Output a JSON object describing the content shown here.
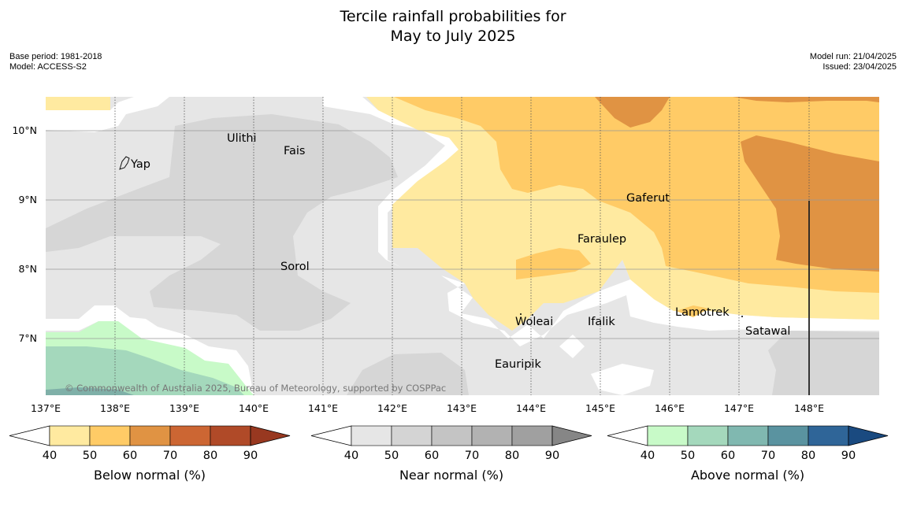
{
  "title": {
    "line1": "Tercile rainfall probabilities for",
    "line2": "May to July 2025"
  },
  "meta_left": {
    "base_period": "Base period: 1981-2018",
    "model": "Model: ACCESS-S2"
  },
  "meta_right": {
    "model_run": "Model run: 21/04/2025",
    "issued": "Issued: 23/04/2025"
  },
  "copyright": "© Commonwealth of Australia 2025, Bureau of Meteorology, supported by COSPPac",
  "axes": {
    "lat_labels": [
      "10°N",
      "9°N",
      "8°N",
      "7°N"
    ],
    "lon_labels": [
      "137°E",
      "138°E",
      "139°E",
      "140°E",
      "141°E",
      "142°E",
      "143°E",
      "144°E",
      "145°E",
      "146°E",
      "147°E",
      "148°E"
    ]
  },
  "places": [
    {
      "name": "Yap"
    },
    {
      "name": "Ulithi"
    },
    {
      "name": "Fais"
    },
    {
      "name": "Gaferut"
    },
    {
      "name": "Faraulep"
    },
    {
      "name": "Sorol"
    },
    {
      "name": "Lamotrek"
    },
    {
      "name": "Woleai"
    },
    {
      "name": "Ifalik"
    },
    {
      "name": "Satawal"
    },
    {
      "name": "Eauripik"
    }
  ],
  "colorbars": [
    {
      "label": "Below normal (%)",
      "ticks": [
        "40",
        "50",
        "60",
        "70",
        "80",
        "90"
      ],
      "colors": [
        "#ffeaa0",
        "#ffcb66",
        "#e09343",
        "#cc6633",
        "#b04a28",
        "#983820"
      ]
    },
    {
      "label": "Near normal (%)",
      "ticks": [
        "40",
        "50",
        "60",
        "70",
        "80",
        "90"
      ],
      "colors": [
        "#e6e6e6",
        "#d4d4d4",
        "#c4c4c4",
        "#b2b2b2",
        "#a0a0a0",
        "#868686"
      ]
    },
    {
      "label": "Above normal (%)",
      "ticks": [
        "40",
        "50",
        "60",
        "70",
        "80",
        "90"
      ],
      "colors": [
        "#c8fac8",
        "#a4d8bc",
        "#80b8b0",
        "#5a93a0",
        "#2f6598",
        "#1a4a80"
      ]
    }
  ],
  "colors": {
    "grey40": "#e6e6e6",
    "grey50": "#d6d6d6",
    "yellow40": "#ffeaa0",
    "orange50": "#ffcb66",
    "orange60": "#e09343",
    "green40": "#c8fac8",
    "teal50": "#a4d8bc",
    "teal60": "#7fb0a8"
  }
}
